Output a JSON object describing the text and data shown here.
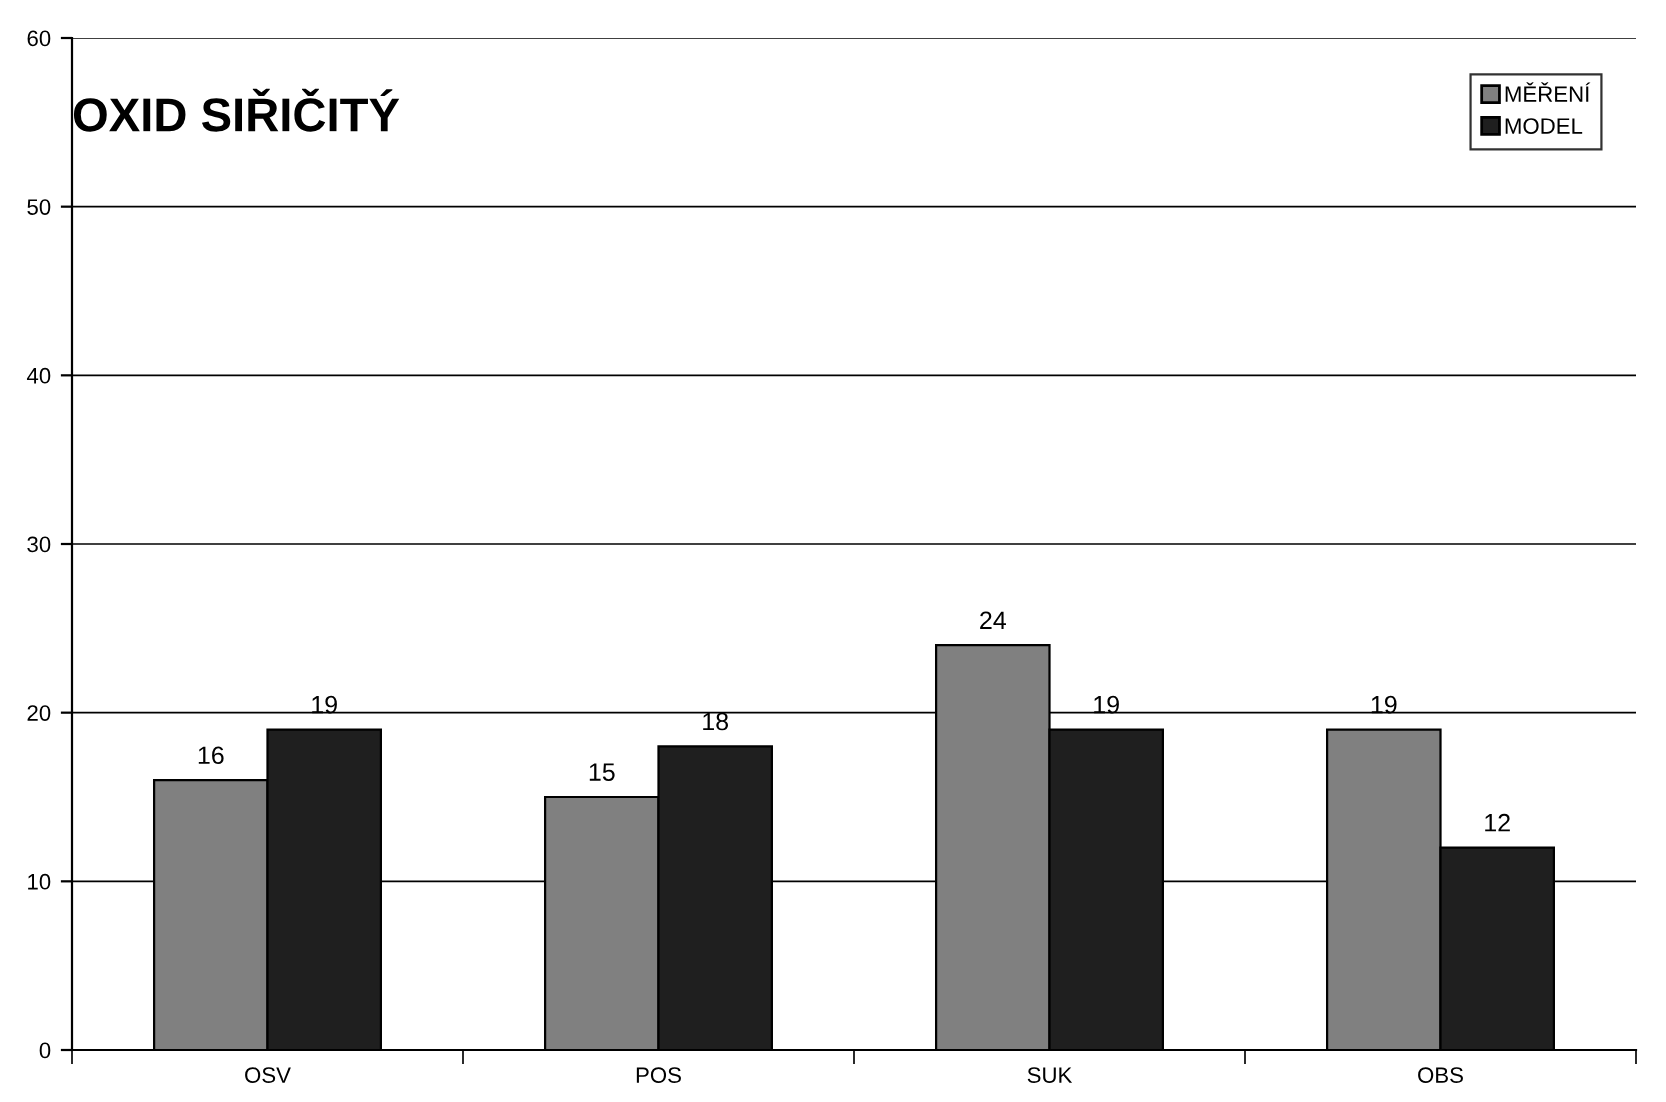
{
  "chart_data": {
    "type": "bar",
    "title": "OXID SIŘIČITÝ",
    "categories": [
      "OSV",
      "POS",
      "SUK",
      "OBS"
    ],
    "series": [
      {
        "name": "MĚŘENÍ",
        "color": "#808080",
        "values": [
          16,
          15,
          24,
          19
        ]
      },
      {
        "name": "MODEL",
        "color": "#1f1f1f",
        "values": [
          19,
          18,
          19,
          12
        ]
      }
    ],
    "ylim": [
      0,
      60
    ],
    "yticks": [
      0,
      10,
      20,
      30,
      40,
      50,
      60
    ],
    "grid": "y",
    "legend": "top right",
    "data_labels": true
  }
}
